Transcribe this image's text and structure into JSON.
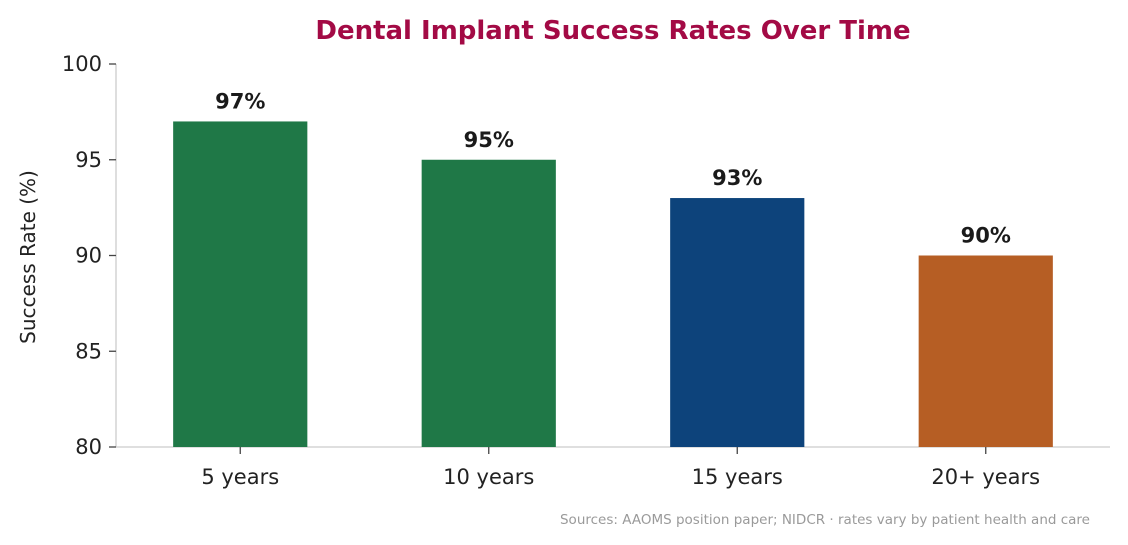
{
  "chart_data": {
    "type": "bar",
    "title": "Dental Implant Success Rates Over Time",
    "xlabel": "",
    "ylabel": "Success Rate (%)",
    "categories": [
      "5 years",
      "10 years",
      "15 years",
      "20+ years"
    ],
    "values": [
      97,
      95,
      93,
      90
    ],
    "value_labels": [
      "97%",
      "95%",
      "93%",
      "90%"
    ],
    "bar_colors": [
      "#1f7847",
      "#1f7847",
      "#0d437b",
      "#b65e24"
    ],
    "ylim": [
      80,
      100
    ],
    "yticks": [
      80,
      85,
      90,
      95,
      100
    ],
    "ytick_labels": [
      "80",
      "85",
      "90",
      "95",
      "100"
    ],
    "grid": false,
    "legend": "none",
    "source_note": "Sources: AAOMS position paper; NIDCR · rates vary by patient health and care"
  },
  "colors": {
    "title": "#a30a45",
    "axis": "#cccccc",
    "tick": "#444444",
    "text": "#222222",
    "source": "#9a9a9a"
  }
}
